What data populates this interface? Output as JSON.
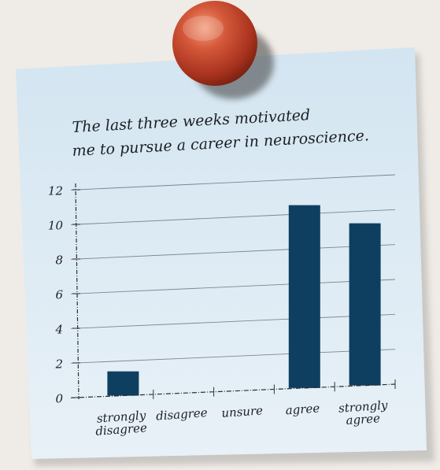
{
  "chart_data": {
    "type": "bar",
    "title": "The last three weeks motivated me to pursue a career in neuroscience.",
    "title_lines": [
      "The last three weeks motivated",
      "me to pursue a career in neuroscience."
    ],
    "categories": [
      "strongly disagree",
      "disagree",
      "unsure",
      "agree",
      "strongly agree"
    ],
    "category_lines": [
      [
        "strongly",
        "disagree"
      ],
      [
        "disagree"
      ],
      [
        "unsure"
      ],
      [
        "agree"
      ],
      [
        "strongly",
        "agree"
      ]
    ],
    "values": [
      1.4,
      0,
      0,
      10.5,
      9.3
    ],
    "ylim": [
      0,
      12
    ],
    "yticks": [
      "0",
      "2",
      "4",
      "6",
      "8",
      "10",
      "12"
    ],
    "xlabel": "",
    "ylabel": "",
    "grid": true,
    "bar_color": "#0e3f61"
  },
  "colors": {
    "background": "#efebe6",
    "note_paper": "#dbe9f2",
    "pin": "#c0432b",
    "axis": "#3a3a3a"
  },
  "icons": {
    "pin": "push-pin-icon"
  }
}
